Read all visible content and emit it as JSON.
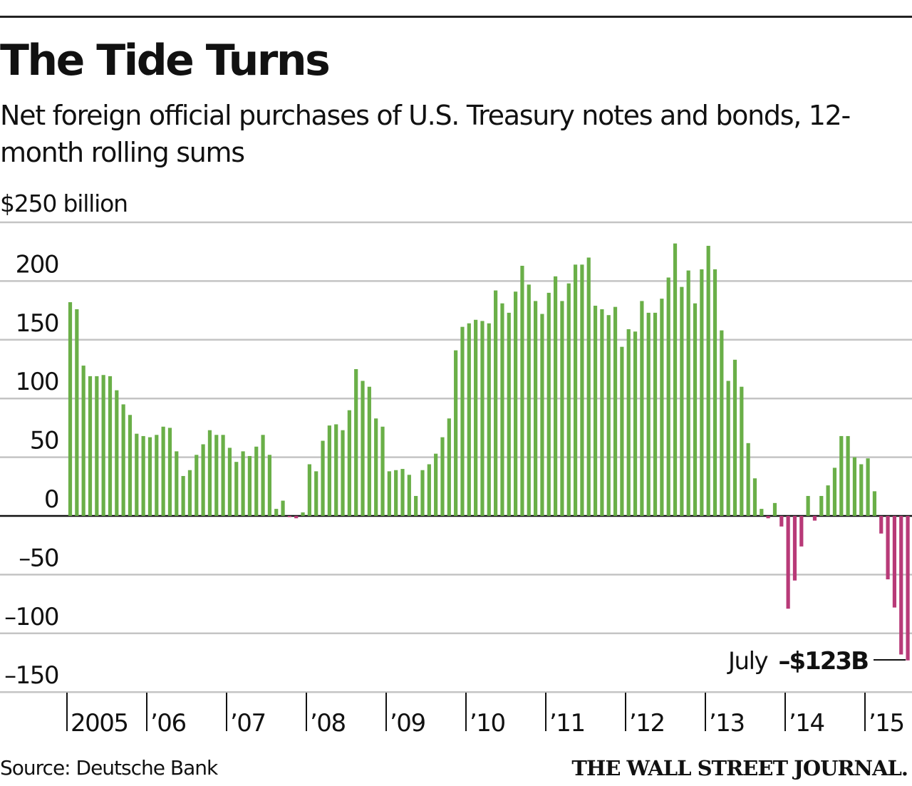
{
  "header": {
    "title": "The Tide Turns",
    "subtitle": "Net foreign official purchases of U.S. Treasury notes and bonds, 12-month rolling sums",
    "unit_label": "$250 billion"
  },
  "footer": {
    "source": "Source: Deutsche Bank",
    "publisher": "THE WALL STREET JOURNAL."
  },
  "colors": {
    "positive": "#6aaf48",
    "negative": "#b83a78",
    "grid": "#c4c4c4",
    "axis": "#111111"
  },
  "chart_data": {
    "type": "bar",
    "title": "The Tide Turns",
    "subtitle": "Net foreign official purchases of U.S. Treasury notes and bonds, 12-month rolling sums",
    "ylabel": "$ billion",
    "xlabel": "",
    "ylim": [
      -150,
      250
    ],
    "yticks": [
      200,
      150,
      100,
      50,
      0,
      -50,
      -100,
      -150
    ],
    "ytick_labels": [
      "200",
      "150",
      "100",
      "50",
      "0",
      "–50",
      "–100",
      "–150"
    ],
    "top_tick_label": "$250 billion",
    "grid": true,
    "frequency": "monthly",
    "start": "2005-01",
    "end": "2015-07",
    "xtick_labels": [
      "2005",
      "’06",
      "’07",
      "’08",
      "’09",
      "’10",
      "’11",
      "’12",
      "’13",
      "’14",
      "’15"
    ],
    "series": [
      {
        "name": "Net foreign official purchases (12-month rolling sum)",
        "values": [
          182,
          176,
          128,
          119,
          119,
          120,
          119,
          107,
          95,
          86,
          70,
          68,
          67,
          69,
          76,
          75,
          55,
          34,
          39,
          52,
          61,
          73,
          69,
          69,
          58,
          46,
          55,
          51,
          59,
          69,
          52,
          6,
          13,
          -1,
          -2,
          3,
          44,
          38,
          64,
          77,
          78,
          73,
          90,
          125,
          115,
          110,
          83,
          76,
          38,
          39,
          40,
          35,
          17,
          39,
          44,
          53,
          67,
          83,
          141,
          161,
          164,
          167,
          166,
          164,
          192,
          181,
          173,
          191,
          213,
          197,
          183,
          172,
          190,
          204,
          183,
          198,
          214,
          214,
          220,
          179,
          176,
          171,
          178,
          144,
          159,
          157,
          183,
          173,
          173,
          185,
          203,
          232,
          195,
          209,
          181,
          210,
          230,
          210,
          158,
          115,
          133,
          110,
          62,
          32,
          6,
          -2,
          11,
          -9,
          -79,
          -55,
          -26,
          17,
          -4,
          17,
          26,
          41,
          68,
          68,
          50,
          44,
          49,
          21,
          -15,
          -54,
          -78,
          -118,
          -123
        ]
      }
    ],
    "annotations": [
      {
        "label": "July",
        "value_text": "–$123B",
        "target": "2015-07"
      }
    ]
  }
}
